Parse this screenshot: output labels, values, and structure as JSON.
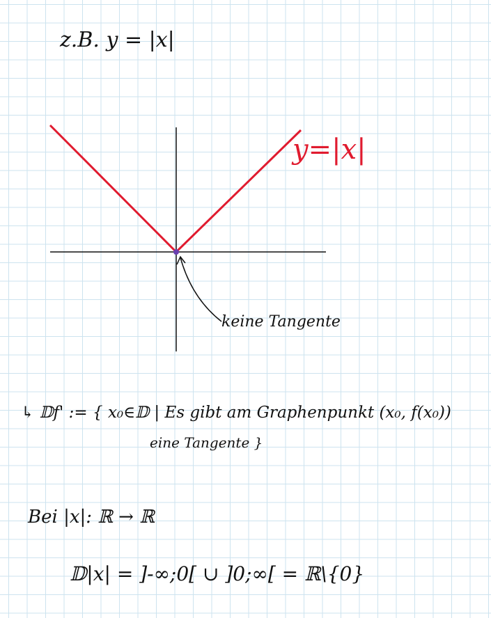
{
  "header": {
    "example": "z.B.  y = |x|"
  },
  "graph": {
    "curve_label": "y=|x|",
    "annotation": "keine Tangente"
  },
  "definition": {
    "line1": "↳  𝔻f' :=  { x₀∈𝔻 | Es gibt am Graphenpunkt (x₀, f(x₀))",
    "line2": "eine Tangente }"
  },
  "example": {
    "mapping": "Bei |x|: ℝ → ℝ",
    "domain": "𝔻|x| = ]-∞;0[ ∪ ]0;∞[ = ℝ\\{0}"
  }
}
